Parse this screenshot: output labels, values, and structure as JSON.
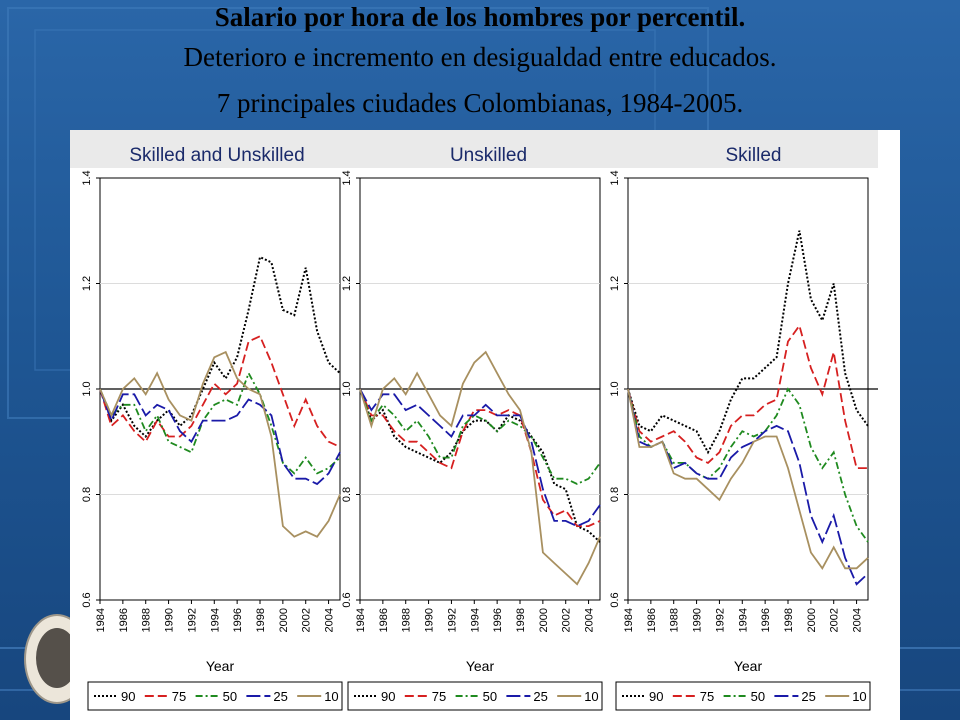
{
  "title": {
    "line1": "Salario por hora de los hombres por percentil.",
    "line2": "Deterioro e incremento en desigualdad entre educados.",
    "line3": "7 principales ciudades Colombianas, 1984-2005."
  },
  "colors": {
    "90": "#000000",
    "75": "#d62020",
    "50": "#1f8a1f",
    "25": "#1a1aa8",
    "10": "#a89060",
    "panel_header": "#eaeaea",
    "plot_bg": "#ffffff"
  },
  "chart_data": [
    {
      "type": "line",
      "title": "Skilled and Unskilled",
      "xlabel": "Year",
      "ylabel": "",
      "xlim": [
        1984,
        2005
      ],
      "ylim": [
        0.6,
        1.4
      ],
      "yticks": [
        "0.6",
        "0.8",
        "1.0",
        "1.2",
        "1.4"
      ],
      "xticks": [
        "1984",
        "1986",
        "1988",
        "1990",
        "1992",
        "1994",
        "1996",
        "1998",
        "2000",
        "2002",
        "2004"
      ],
      "reference_line": 1.0,
      "grid": true,
      "legend": "bottom",
      "x": [
        1984,
        1985,
        1986,
        1987,
        1988,
        1989,
        1990,
        1991,
        1992,
        1993,
        1994,
        1995,
        1996,
        1997,
        1998,
        1999,
        2000,
        2001,
        2002,
        2003,
        2004,
        2005
      ],
      "series": [
        {
          "name": "90",
          "style": "dotted",
          "values": [
            1.0,
            0.94,
            0.97,
            0.93,
            0.91,
            0.94,
            0.96,
            0.93,
            0.95,
            1.0,
            1.05,
            1.02,
            1.06,
            1.15,
            1.25,
            1.24,
            1.15,
            1.14,
            1.23,
            1.11,
            1.05,
            1.03
          ]
        },
        {
          "name": "75",
          "style": "dashed",
          "values": [
            1.0,
            0.93,
            0.95,
            0.92,
            0.9,
            0.94,
            0.91,
            0.91,
            0.93,
            0.97,
            1.01,
            0.99,
            1.01,
            1.09,
            1.1,
            1.05,
            0.99,
            0.93,
            0.98,
            0.93,
            0.9,
            0.89
          ]
        },
        {
          "name": "50",
          "style": "dashdot",
          "values": [
            1.0,
            0.95,
            0.97,
            0.97,
            0.92,
            0.95,
            0.9,
            0.89,
            0.88,
            0.94,
            0.97,
            0.98,
            0.97,
            1.03,
            0.99,
            0.93,
            0.86,
            0.84,
            0.87,
            0.84,
            0.85,
            0.87
          ]
        },
        {
          "name": "25",
          "style": "longdash",
          "values": [
            1.0,
            0.94,
            0.99,
            0.99,
            0.95,
            0.97,
            0.96,
            0.92,
            0.9,
            0.94,
            0.94,
            0.94,
            0.95,
            0.98,
            0.97,
            0.95,
            0.86,
            0.83,
            0.83,
            0.82,
            0.84,
            0.88
          ]
        },
        {
          "name": "10",
          "style": "solid",
          "values": [
            1.0,
            0.95,
            1.0,
            1.02,
            0.99,
            1.03,
            0.98,
            0.95,
            0.94,
            1.01,
            1.06,
            1.07,
            1.02,
            1.0,
            0.99,
            0.91,
            0.74,
            0.72,
            0.73,
            0.72,
            0.75,
            0.8
          ]
        }
      ]
    },
    {
      "type": "line",
      "title": "Unskilled",
      "xlabel": "Year",
      "ylabel": "",
      "xlim": [
        1984,
        2005
      ],
      "ylim": [
        0.6,
        1.4
      ],
      "yticks": [
        "0.6",
        "0.8",
        "1.0",
        "1.2",
        "1.4"
      ],
      "xticks": [
        "1984",
        "1986",
        "1988",
        "1990",
        "1992",
        "1994",
        "1996",
        "1998",
        "2000",
        "2002",
        "2004"
      ],
      "reference_line": 1.0,
      "grid": true,
      "legend": "bottom",
      "x": [
        1984,
        1985,
        1986,
        1987,
        1988,
        1989,
        1990,
        1991,
        1992,
        1993,
        1994,
        1995,
        1996,
        1997,
        1998,
        1999,
        2000,
        2001,
        2002,
        2003,
        2004,
        2005
      ],
      "series": [
        {
          "name": "90",
          "style": "dotted",
          "values": [
            1.0,
            0.94,
            0.96,
            0.91,
            0.89,
            0.88,
            0.87,
            0.86,
            0.88,
            0.92,
            0.94,
            0.94,
            0.92,
            0.95,
            0.94,
            0.91,
            0.88,
            0.82,
            0.81,
            0.74,
            0.73,
            0.71
          ]
        },
        {
          "name": "75",
          "style": "dashed",
          "values": [
            1.0,
            0.95,
            0.95,
            0.92,
            0.9,
            0.9,
            0.88,
            0.86,
            0.85,
            0.92,
            0.96,
            0.96,
            0.95,
            0.96,
            0.95,
            0.88,
            0.79,
            0.76,
            0.77,
            0.74,
            0.74,
            0.75
          ]
        },
        {
          "name": "50",
          "style": "dashdot",
          "values": [
            1.0,
            0.94,
            0.97,
            0.95,
            0.92,
            0.94,
            0.91,
            0.87,
            0.87,
            0.93,
            0.95,
            0.94,
            0.92,
            0.94,
            0.93,
            0.91,
            0.87,
            0.83,
            0.83,
            0.82,
            0.83,
            0.86
          ]
        },
        {
          "name": "25",
          "style": "longdash",
          "values": [
            1.0,
            0.96,
            0.99,
            0.99,
            0.96,
            0.97,
            0.95,
            0.93,
            0.91,
            0.95,
            0.95,
            0.97,
            0.95,
            0.95,
            0.95,
            0.9,
            0.81,
            0.75,
            0.75,
            0.74,
            0.75,
            0.78
          ]
        },
        {
          "name": "10",
          "style": "solid",
          "values": [
            1.0,
            0.93,
            1.0,
            1.02,
            0.99,
            1.03,
            0.99,
            0.95,
            0.93,
            1.01,
            1.05,
            1.07,
            1.03,
            0.99,
            0.96,
            0.88,
            0.69,
            0.67,
            0.65,
            0.63,
            0.67,
            0.72
          ]
        }
      ]
    },
    {
      "type": "line",
      "title": "Skilled",
      "xlabel": "Year",
      "ylabel": "",
      "xlim": [
        1984,
        2005
      ],
      "ylim": [
        0.6,
        1.4
      ],
      "yticks": [
        "0.6",
        "0.8",
        "1.0",
        "1.2",
        "1.4"
      ],
      "xticks": [
        "1984",
        "1986",
        "1988",
        "1990",
        "1992",
        "1994",
        "1996",
        "1998",
        "2000",
        "2002",
        "2004"
      ],
      "reference_line": 1.0,
      "grid": true,
      "legend": "bottom",
      "x": [
        1984,
        1985,
        1986,
        1987,
        1988,
        1989,
        1990,
        1991,
        1992,
        1993,
        1994,
        1995,
        1996,
        1997,
        1998,
        1999,
        2000,
        2001,
        2002,
        2003,
        2004,
        2005
      ],
      "series": [
        {
          "name": "90",
          "style": "dotted",
          "values": [
            1.0,
            0.93,
            0.92,
            0.95,
            0.94,
            0.93,
            0.92,
            0.88,
            0.92,
            0.98,
            1.02,
            1.02,
            1.04,
            1.06,
            1.2,
            1.3,
            1.17,
            1.13,
            1.2,
            1.03,
            0.96,
            0.93
          ]
        },
        {
          "name": "75",
          "style": "dashed",
          "values": [
            1.0,
            0.92,
            0.9,
            0.91,
            0.92,
            0.9,
            0.87,
            0.86,
            0.88,
            0.93,
            0.95,
            0.95,
            0.97,
            0.98,
            1.09,
            1.12,
            1.04,
            0.99,
            1.07,
            0.94,
            0.85,
            0.85
          ]
        },
        {
          "name": "50",
          "style": "dashdot",
          "values": [
            1.0,
            0.91,
            0.89,
            0.9,
            0.86,
            0.86,
            0.84,
            0.83,
            0.85,
            0.89,
            0.92,
            0.91,
            0.92,
            0.95,
            1.0,
            0.97,
            0.89,
            0.85,
            0.88,
            0.8,
            0.74,
            0.71
          ]
        },
        {
          "name": "25",
          "style": "longdash",
          "values": [
            1.0,
            0.9,
            0.89,
            0.9,
            0.85,
            0.86,
            0.84,
            0.83,
            0.83,
            0.87,
            0.89,
            0.9,
            0.92,
            0.93,
            0.92,
            0.86,
            0.76,
            0.71,
            0.76,
            0.68,
            0.63,
            0.65
          ]
        },
        {
          "name": "10",
          "style": "solid",
          "values": [
            1.0,
            0.89,
            0.89,
            0.9,
            0.84,
            0.83,
            0.83,
            0.81,
            0.79,
            0.83,
            0.86,
            0.9,
            0.91,
            0.91,
            0.85,
            0.77,
            0.69,
            0.66,
            0.7,
            0.66,
            0.66,
            0.68
          ]
        }
      ]
    }
  ]
}
